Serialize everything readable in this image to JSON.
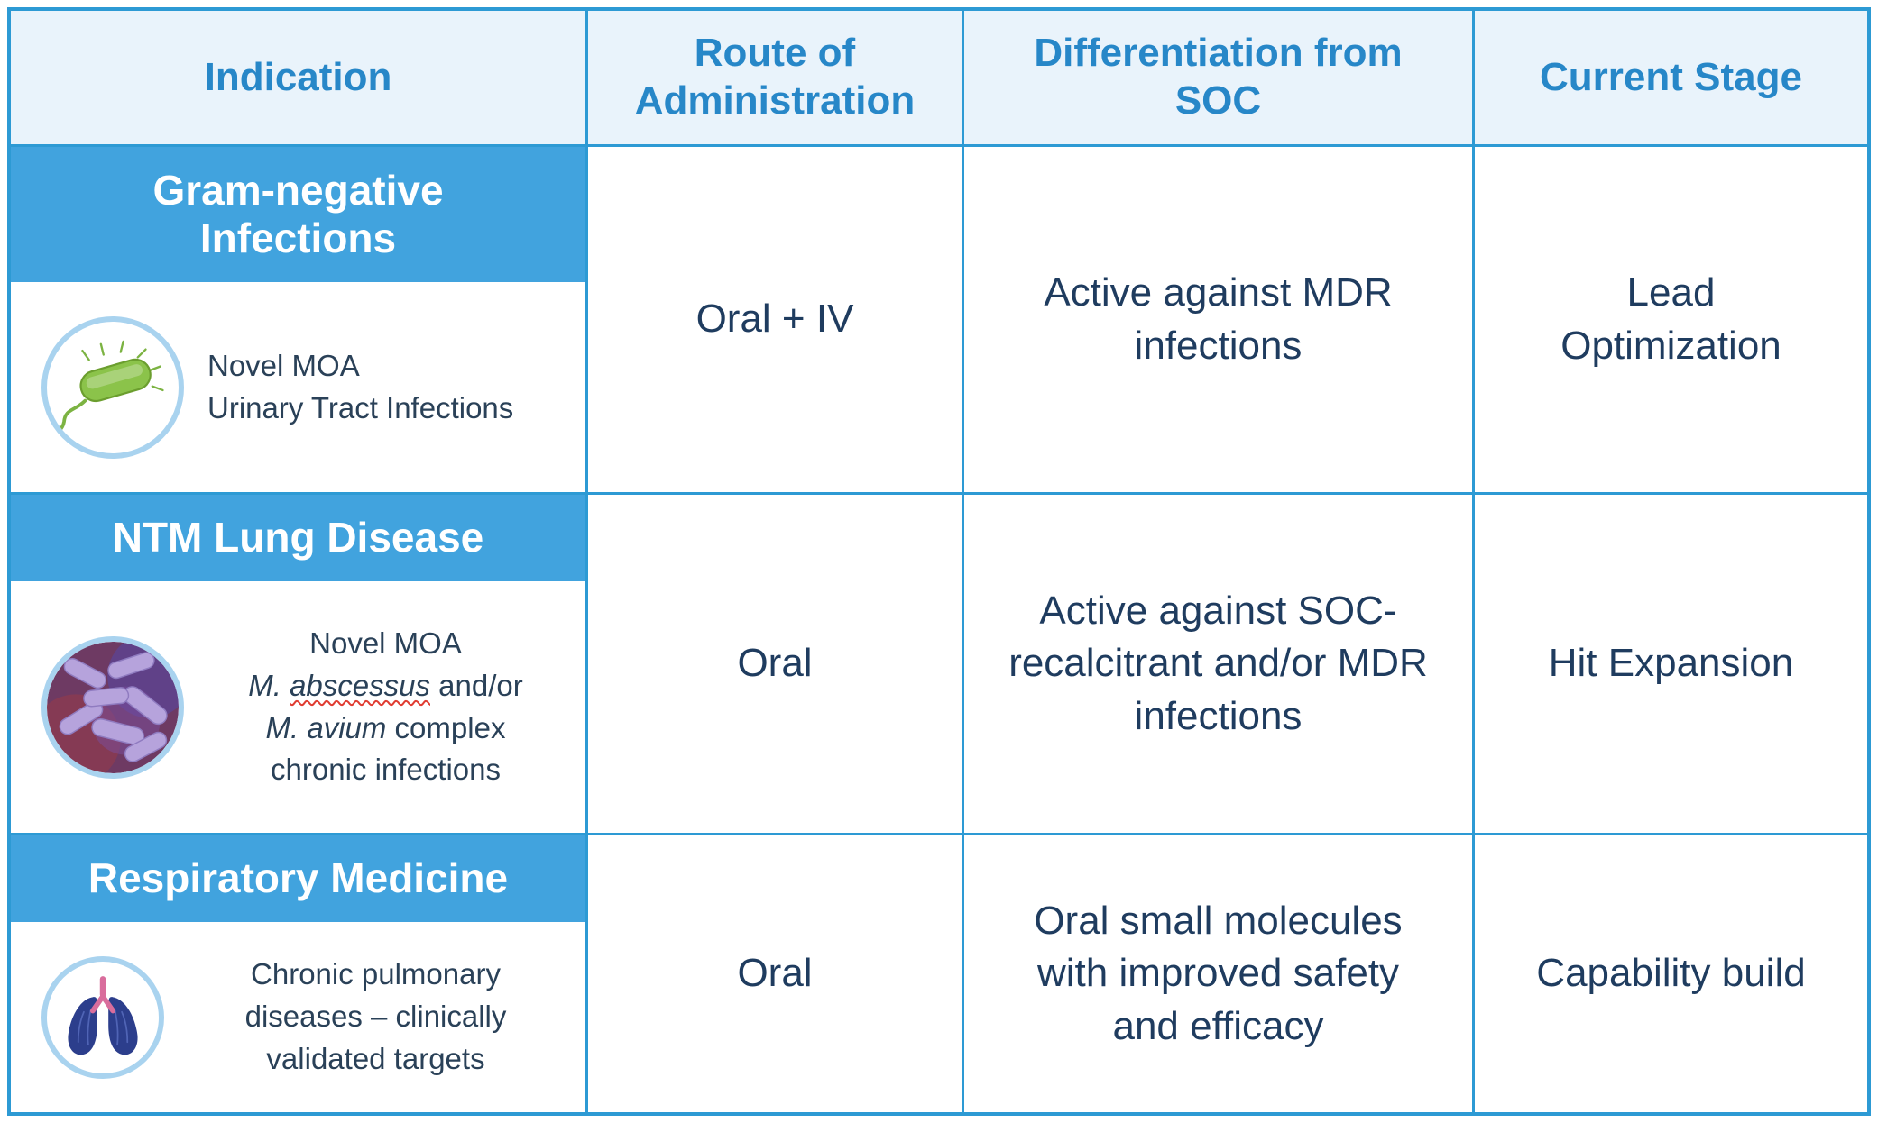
{
  "colors": {
    "border": "#2D9AD4",
    "banner": "#41A3DE",
    "header_bg": "#E9F3FB",
    "header_text": "#2787C8",
    "body_text": "#1F3C5F",
    "squiggle": "#E03C31"
  },
  "chart_data": {
    "type": "table",
    "columns": [
      "Indication",
      "Route of Administration",
      "Differentiation from SOC",
      "Current Stage"
    ],
    "rows": [
      [
        "Gram-negative Infections — Novel MOA, Urinary Tract Infections",
        "Oral + IV",
        "Active against MDR infections",
        "Lead Optimization"
      ],
      [
        "NTM Lung Disease — Novel MOA, M. abscessus and/or M. avium complex chronic infections",
        "Oral",
        "Active against SOC-recalcitrant and/or MDR infections",
        "Hit Expansion"
      ],
      [
        "Respiratory Medicine — Chronic pulmonary diseases – clinically validated targets",
        "Oral",
        "Oral small molecules with improved safety and efficacy",
        "Capability build"
      ]
    ]
  },
  "table": {
    "headers": [
      "Indication",
      "Route of\nAdministration",
      "Differentiation from\nSOC",
      "Current Stage"
    ],
    "rows": [
      {
        "banner": "Gram-negative\nInfections",
        "icon": "green-bacterium-icon",
        "desc": [
          [
            {
              "t": "Novel MOA"
            }
          ],
          [
            {
              "t": "Urinary Tract Infections"
            }
          ]
        ],
        "route": "Oral + IV",
        "differentiation": "Active against MDR\ninfections",
        "stage": "Lead\nOptimization"
      },
      {
        "banner": "NTM Lung Disease",
        "icon": "purple-bacteria-icon",
        "desc": [
          [
            {
              "t": "Novel MOA"
            }
          ],
          [
            {
              "t": "M. ",
              "italic": true
            },
            {
              "t": "abscessus",
              "italic": true,
              "wavy": true
            },
            {
              "t": " and/or"
            }
          ],
          [
            {
              "t": "M. avium",
              "italic": true
            },
            {
              "t": " complex"
            }
          ],
          [
            {
              "t": "chronic infections"
            }
          ]
        ],
        "route": "Oral",
        "differentiation": "Active against SOC-\nrecalcitrant and/or MDR\ninfections",
        "stage": "Hit Expansion"
      },
      {
        "banner": "Respiratory Medicine",
        "icon": "lungs-icon",
        "desc": [
          [
            {
              "t": "Chronic pulmonary"
            }
          ],
          [
            {
              "t": "diseases – clinically"
            }
          ],
          [
            {
              "t": "validated targets"
            }
          ]
        ],
        "route": "Oral",
        "differentiation": "Oral small molecules\nwith improved safety\nand efficacy",
        "stage": "Capability build"
      }
    ]
  }
}
